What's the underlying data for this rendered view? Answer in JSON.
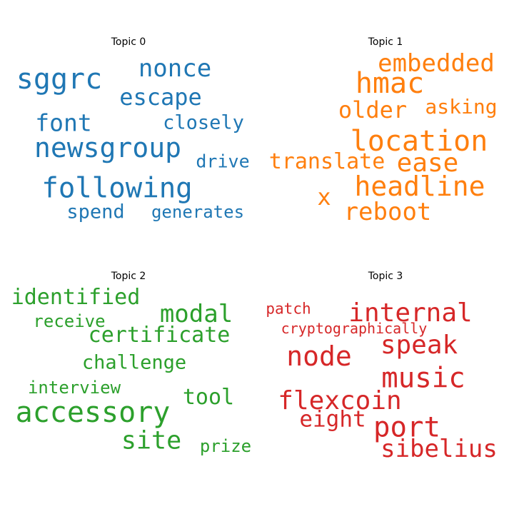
{
  "chart_data": [
    {
      "type": "wordcloud",
      "title": "Topic 0",
      "color": "#1f77b4",
      "words": [
        "nonce",
        "sggrc",
        "escape",
        "font",
        "closely",
        "newsgroup",
        "drive",
        "following",
        "spend",
        "generates"
      ]
    },
    {
      "type": "wordcloud",
      "title": "Topic 1",
      "color": "#ff7f0e",
      "words": [
        "embedded",
        "hmac",
        "asking",
        "older",
        "location",
        "translate",
        "ease",
        "headline",
        "x",
        "reboot"
      ]
    },
    {
      "type": "wordcloud",
      "title": "Topic 2",
      "color": "#2ca02c",
      "words": [
        "identified",
        "modal",
        "receive",
        "certificate",
        "challenge",
        "interview",
        "tool",
        "accessory",
        "site",
        "prize"
      ]
    },
    {
      "type": "wordcloud",
      "title": "Topic 3",
      "color": "#d62728",
      "words": [
        "patch",
        "internal",
        "cryptographically",
        "speak",
        "node",
        "music",
        "flexcoin",
        "eight",
        "port",
        "sibelius"
      ]
    }
  ]
}
